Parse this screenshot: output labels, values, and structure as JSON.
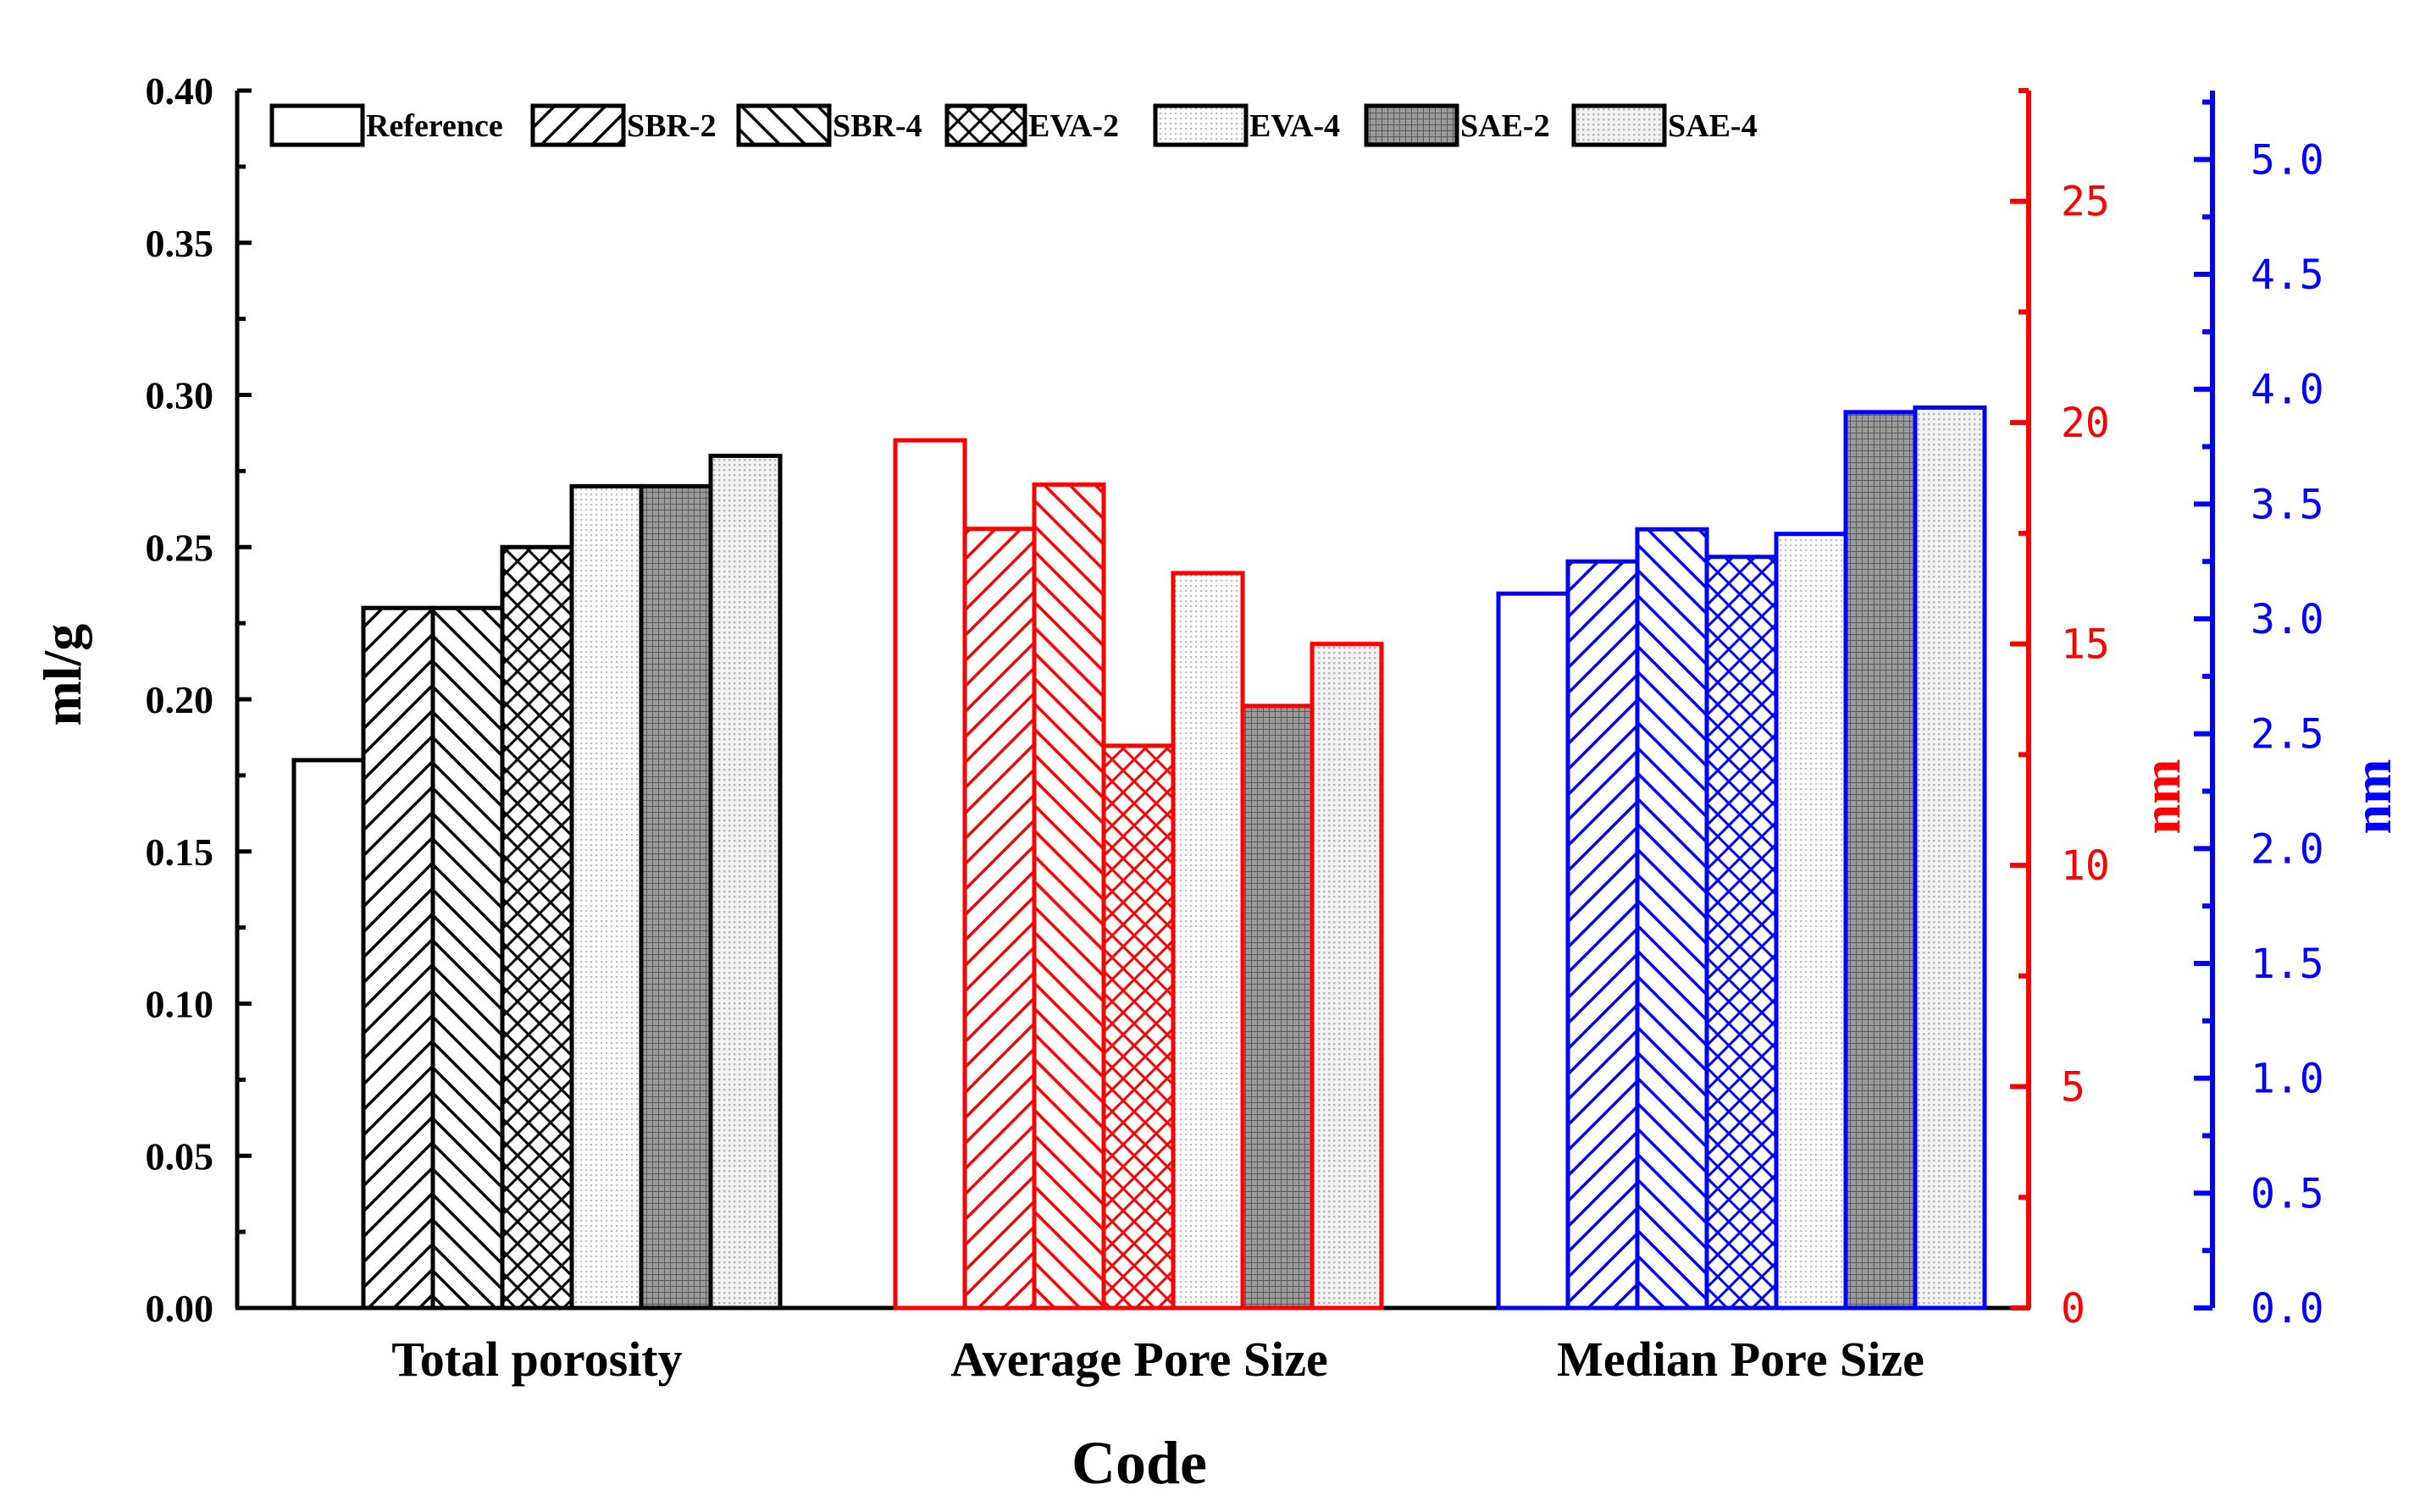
{
  "chart_data": {
    "type": "bar",
    "title": "",
    "xlabel": "Code",
    "categories": [
      "Total porosity",
      "Average Pore Size",
      "Median Pore Size"
    ],
    "legend": [
      "Reference",
      "SBR-2",
      "SBR-4",
      "EVA-2",
      "EVA-4",
      "SAE-2",
      "SAE-4"
    ],
    "legend_position": "top-left",
    "groups": [
      {
        "category": "Total porosity",
        "axis": "left",
        "unit": "ml/g",
        "color": "#000000",
        "values": [
          0.18,
          0.23,
          0.23,
          0.25,
          0.27,
          0.27,
          0.28
        ]
      },
      {
        "category": "Average Pore Size",
        "axis": "right_red",
        "unit": "nm",
        "color": "#ff0000",
        "values": [
          19.6,
          17.6,
          18.6,
          12.7,
          16.6,
          13.6,
          15.0
        ]
      },
      {
        "category": "Median Pore Size",
        "axis": "right_blue",
        "unit": "nm",
        "color": "#0000ff",
        "values": [
          3.11,
          3.25,
          3.39,
          3.27,
          3.37,
          3.9,
          3.92
        ]
      }
    ],
    "axes": {
      "left": {
        "label": "ml/g",
        "ylim": [
          0,
          0.4
        ],
        "ticks": [
          "0.00",
          "0.05",
          "0.10",
          "0.15",
          "0.20",
          "0.25",
          "0.30",
          "0.35",
          "0.40"
        ]
      },
      "right_red": {
        "label": "nm",
        "ylim": [
          0,
          27.5
        ],
        "ticks": [
          "0",
          "5",
          "10",
          "15",
          "20",
          "25"
        ],
        "color": "#ff0000"
      },
      "right_blue": {
        "label": "nm",
        "ylim": [
          0,
          5.3
        ],
        "ticks": [
          "0.0",
          "0.5",
          "1.0",
          "1.5",
          "2.0",
          "2.5",
          "3.0",
          "3.5",
          "4.0",
          "4.5",
          "5.0"
        ],
        "color": "#0000ff"
      }
    }
  }
}
